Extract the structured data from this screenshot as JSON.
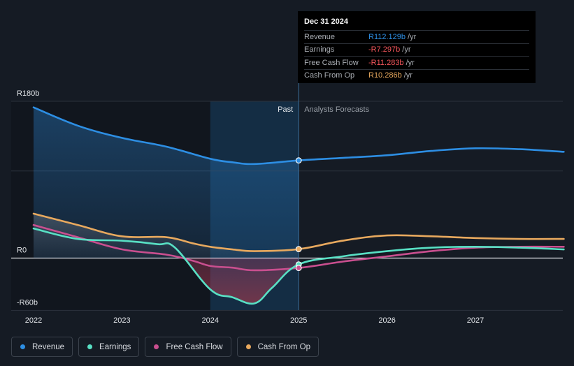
{
  "chart_data": {
    "type": "area",
    "title": "",
    "xlabel": "",
    "ylabel": "",
    "y_unit_prefix": "R",
    "y_unit_suffix": "b",
    "ylim": [
      -60,
      180
    ],
    "y_ticks": [
      {
        "value": 180,
        "label": "R180b"
      },
      {
        "value": 0,
        "label": "R0"
      },
      {
        "value": -60,
        "label": "-R60b"
      }
    ],
    "gridlines": [
      180,
      100,
      0,
      -60
    ],
    "xlim": [
      2022.0,
      2028.0
    ],
    "x_ticks": [
      {
        "value": 2022,
        "label": "2022"
      },
      {
        "value": 2023,
        "label": "2023"
      },
      {
        "value": 2024,
        "label": "2024"
      },
      {
        "value": 2025,
        "label": "2025"
      },
      {
        "value": 2026,
        "label": "2026"
      },
      {
        "value": 2027,
        "label": "2027"
      }
    ],
    "past_region": {
      "start": 2024.0,
      "end": 2025.0,
      "label": "Past"
    },
    "forecast_label": "Analysts Forecasts",
    "divider_x": 2025.0,
    "series": [
      {
        "name": "Revenue",
        "color": "#2d8ee3",
        "fill_past": true,
        "x": [
          2022.0,
          2022.5,
          2023.0,
          2023.5,
          2024.0,
          2024.25,
          2024.5,
          2025.0,
          2025.5,
          2026.0,
          2026.5,
          2027.0,
          2027.5,
          2028.0
        ],
        "values": [
          173,
          152,
          138,
          128,
          114,
          110,
          108,
          112.1,
          115,
          118,
          123,
          126,
          125,
          122
        ]
      },
      {
        "name": "Earnings",
        "color": "#58e0c4",
        "fill_past": false,
        "x": [
          2022.0,
          2022.5,
          2023.0,
          2023.4,
          2023.6,
          2024.0,
          2024.25,
          2024.5,
          2024.7,
          2025.0,
          2025.5,
          2026.0,
          2026.5,
          2027.0,
          2027.5,
          2028.0
        ],
        "values": [
          34,
          22,
          20,
          16,
          12,
          -36,
          -45,
          -52,
          -34,
          -7.3,
          2,
          8,
          12,
          13,
          12,
          10
        ]
      },
      {
        "name": "Free Cash Flow",
        "color": "#c94f8f",
        "fill_past": false,
        "x": [
          2022.0,
          2022.5,
          2023.0,
          2023.5,
          2023.8,
          2024.0,
          2024.25,
          2024.5,
          2025.0,
          2025.5,
          2026.0,
          2026.5,
          2027.0,
          2027.5,
          2028.0
        ],
        "values": [
          38,
          24,
          10,
          4,
          -3,
          -9,
          -11,
          -14,
          -11.3,
          -4,
          2,
          8,
          12,
          13,
          13
        ]
      },
      {
        "name": "Cash From Op",
        "color": "#e8a95e",
        "fill_past": false,
        "x": [
          2022.0,
          2022.5,
          2023.0,
          2023.5,
          2023.8,
          2024.0,
          2024.25,
          2024.5,
          2025.0,
          2025.5,
          2026.0,
          2026.5,
          2027.0,
          2027.5,
          2028.0
        ],
        "values": [
          51,
          38,
          25,
          24,
          17,
          13,
          10,
          8,
          10.3,
          20,
          26,
          25,
          23,
          22,
          22
        ]
      }
    ],
    "tooltip": {
      "date": "Dec 31 2024",
      "rows": [
        {
          "label": "Revenue",
          "value": "R112.129b",
          "unit": "/yr",
          "color": "#2d8ee3"
        },
        {
          "label": "Earnings",
          "value": "-R7.297b",
          "unit": "/yr",
          "color": "#f2555a"
        },
        {
          "label": "Free Cash Flow",
          "value": "-R11.283b",
          "unit": "/yr",
          "color": "#f2555a"
        },
        {
          "label": "Cash From Op",
          "value": "R10.286b",
          "unit": "/yr",
          "color": "#e8a95e"
        }
      ]
    },
    "legend": [
      {
        "label": "Revenue",
        "color": "#2d8ee3"
      },
      {
        "label": "Earnings",
        "color": "#58e0c4"
      },
      {
        "label": "Free Cash Flow",
        "color": "#c94f8f"
      },
      {
        "label": "Cash From Op",
        "color": "#e8a95e"
      }
    ]
  }
}
